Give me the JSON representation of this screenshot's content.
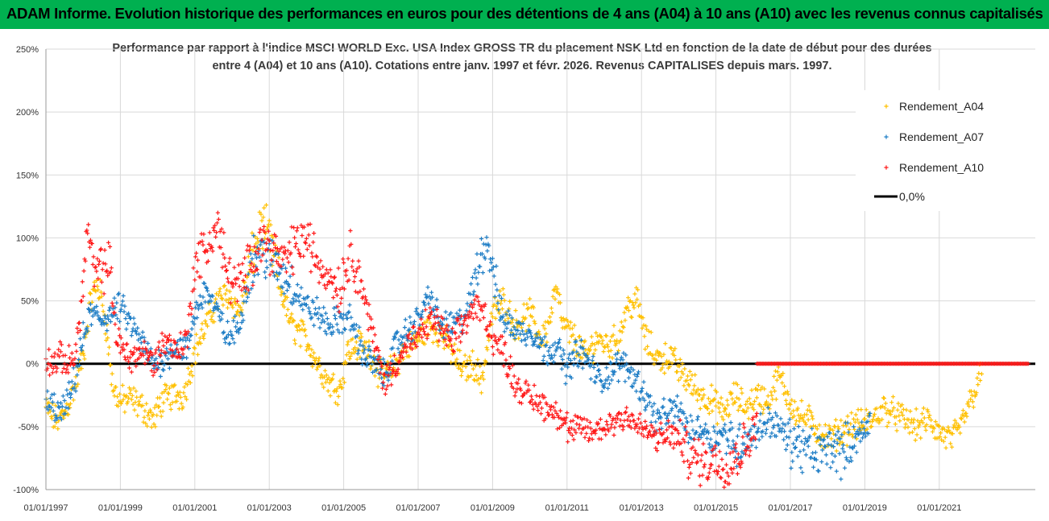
{
  "header": {
    "title": "ADAM Informe. Evolution historique des performances en euros pour des détentions de 4 ans (A04) à 10 ans (A10) avec les revenus connus capitalisés"
  },
  "colors": {
    "banner": "#00b050",
    "a04": "#ffc000",
    "a07": "#1f7ec6",
    "a10": "#ff1a1a",
    "zero": "#000000",
    "grid": "#d9d9d9"
  },
  "chart_data": {
    "type": "scatter",
    "title_lines": [
      "Performance par rapport à l'indice MSCI WORLD Exc. USA Index GROSS TR  du placement NSK Ltd en fonction de la date de début pour des durées",
      "entre 4 (A04) et 10 ans (A10). Cotations entre janv. 1997 et févr. 2026. Revenus CAPITALISES depuis mars. 1997."
    ],
    "xlabel": "",
    "ylabel": "",
    "x_range": [
      1997.0,
      2023.4
    ],
    "ylim": [
      -100,
      250
    ],
    "y_ticks": [
      250,
      200,
      150,
      100,
      50,
      0,
      -50,
      -100
    ],
    "y_tick_labels": [
      "250%",
      "200%",
      "150%",
      "100%",
      "50%",
      "0%",
      "-50%",
      "-100%"
    ],
    "x_ticks": [
      1997,
      1999,
      2001,
      2003,
      2005,
      2007,
      2009,
      2011,
      2013,
      2015,
      2017,
      2019,
      2021
    ],
    "x_tick_labels": [
      "01/01/1997",
      "01/01/1999",
      "01/01/2001",
      "01/01/2003",
      "01/01/2005",
      "01/01/2007",
      "01/01/2009",
      "01/01/2011",
      "01/01/2013",
      "01/01/2015",
      "01/01/2017",
      "01/01/2019",
      "01/01/2021"
    ],
    "legend_position": "top-right",
    "series": [
      {
        "name": "Rendement_A04",
        "key": "a04",
        "end": 2022.15,
        "points": [
          [
            1997.0,
            -35
          ],
          [
            1997.25,
            -45
          ],
          [
            1997.5,
            -40
          ],
          [
            1997.75,
            -20
          ],
          [
            1998.0,
            5
          ],
          [
            1998.2,
            50
          ],
          [
            1998.4,
            65
          ],
          [
            1998.6,
            35
          ],
          [
            1998.8,
            -20
          ],
          [
            1999.0,
            -30
          ],
          [
            1999.3,
            -28
          ],
          [
            1999.6,
            -35
          ],
          [
            1999.9,
            -45
          ],
          [
            2000.1,
            -30
          ],
          [
            2000.4,
            -25
          ],
          [
            2000.7,
            -25
          ],
          [
            2001.0,
            10
          ],
          [
            2001.3,
            30
          ],
          [
            2001.6,
            50
          ],
          [
            2001.9,
            55
          ],
          [
            2002.2,
            40
          ],
          [
            2002.5,
            80
          ],
          [
            2002.8,
            110
          ],
          [
            2003.0,
            100
          ],
          [
            2003.3,
            60
          ],
          [
            2003.6,
            30
          ],
          [
            2004.0,
            20
          ],
          [
            2004.3,
            0
          ],
          [
            2004.6,
            -15
          ],
          [
            2004.9,
            -20
          ],
          [
            2005.1,
            10
          ],
          [
            2005.4,
            15
          ],
          [
            2005.7,
            10
          ],
          [
            2006.0,
            -10
          ],
          [
            2006.3,
            -5
          ],
          [
            2006.6,
            10
          ],
          [
            2007.0,
            20
          ],
          [
            2007.3,
            30
          ],
          [
            2007.6,
            25
          ],
          [
            2007.9,
            10
          ],
          [
            2008.2,
            -5
          ],
          [
            2008.5,
            0
          ],
          [
            2008.7,
            -15
          ],
          [
            2009.0,
            40
          ],
          [
            2009.3,
            50
          ],
          [
            2009.6,
            30
          ],
          [
            2010.0,
            40
          ],
          [
            2010.3,
            20
          ],
          [
            2010.5,
            30
          ],
          [
            2010.7,
            60
          ],
          [
            2010.9,
            30
          ],
          [
            2011.2,
            20
          ],
          [
            2011.5,
            5
          ],
          [
            2011.8,
            20
          ],
          [
            2012.1,
            15
          ],
          [
            2012.4,
            20
          ],
          [
            2012.6,
            45
          ],
          [
            2012.9,
            50
          ],
          [
            2013.1,
            20
          ],
          [
            2013.4,
            5
          ],
          [
            2013.8,
            5
          ],
          [
            2014.0,
            -5
          ],
          [
            2014.3,
            -15
          ],
          [
            2014.6,
            -25
          ],
          [
            2014.9,
            -30
          ],
          [
            2015.2,
            -40
          ],
          [
            2015.5,
            -25
          ],
          [
            2015.8,
            -35
          ],
          [
            2016.1,
            -25
          ],
          [
            2016.4,
            -30
          ],
          [
            2016.7,
            -10
          ],
          [
            2016.9,
            -25
          ],
          [
            2017.2,
            -40
          ],
          [
            2017.5,
            -45
          ],
          [
            2017.8,
            -55
          ],
          [
            2018.0,
            -60
          ],
          [
            2018.3,
            -55
          ],
          [
            2018.6,
            -50
          ],
          [
            2018.9,
            -48
          ],
          [
            2019.2,
            -45
          ],
          [
            2019.5,
            -35
          ],
          [
            2019.8,
            -40
          ],
          [
            2020.1,
            -45
          ],
          [
            2020.4,
            -50
          ],
          [
            2020.7,
            -45
          ],
          [
            2021.0,
            -55
          ],
          [
            2021.3,
            -60
          ],
          [
            2021.5,
            -55
          ],
          [
            2021.7,
            -40
          ],
          [
            2021.9,
            -25
          ],
          [
            2022.1,
            -10
          ]
        ]
      },
      {
        "name": "Rendement_A07",
        "key": "a07",
        "end": 2019.15,
        "points": [
          [
            1997.0,
            -30
          ],
          [
            1997.2,
            -35
          ],
          [
            1997.4,
            -40
          ],
          [
            1997.6,
            -30
          ],
          [
            1997.8,
            -10
          ],
          [
            1998.0,
            20
          ],
          [
            1998.2,
            40
          ],
          [
            1998.5,
            35
          ],
          [
            1998.8,
            40
          ],
          [
            1999.0,
            45
          ],
          [
            1999.3,
            30
          ],
          [
            1999.6,
            15
          ],
          [
            1999.9,
            0
          ],
          [
            2000.2,
            5
          ],
          [
            2000.5,
            15
          ],
          [
            2000.8,
            10
          ],
          [
            2001.0,
            40
          ],
          [
            2001.3,
            60
          ],
          [
            2001.6,
            40
          ],
          [
            2001.9,
            20
          ],
          [
            2002.2,
            30
          ],
          [
            2002.5,
            80
          ],
          [
            2002.8,
            90
          ],
          [
            2003.1,
            80
          ],
          [
            2003.4,
            70
          ],
          [
            2003.7,
            60
          ],
          [
            2004.0,
            45
          ],
          [
            2004.3,
            40
          ],
          [
            2004.6,
            30
          ],
          [
            2004.9,
            35
          ],
          [
            2005.2,
            35
          ],
          [
            2005.5,
            10
          ],
          [
            2005.8,
            0
          ],
          [
            2006.1,
            -10
          ],
          [
            2006.4,
            15
          ],
          [
            2006.7,
            25
          ],
          [
            2007.0,
            35
          ],
          [
            2007.3,
            55
          ],
          [
            2007.6,
            30
          ],
          [
            2007.9,
            30
          ],
          [
            2008.2,
            35
          ],
          [
            2008.4,
            50
          ],
          [
            2008.6,
            75
          ],
          [
            2008.8,
            100
          ],
          [
            2009.0,
            80
          ],
          [
            2009.2,
            40
          ],
          [
            2009.5,
            30
          ],
          [
            2009.8,
            25
          ],
          [
            2010.1,
            25
          ],
          [
            2010.4,
            10
          ],
          [
            2010.7,
            15
          ],
          [
            2011.0,
            -5
          ],
          [
            2011.3,
            10
          ],
          [
            2011.6,
            0
          ],
          [
            2011.9,
            -15
          ],
          [
            2012.2,
            -5
          ],
          [
            2012.5,
            0
          ],
          [
            2012.8,
            -10
          ],
          [
            2013.1,
            -25
          ],
          [
            2013.4,
            -45
          ],
          [
            2013.7,
            -40
          ],
          [
            2014.0,
            -35
          ],
          [
            2014.3,
            -55
          ],
          [
            2014.6,
            -50
          ],
          [
            2014.9,
            -60
          ],
          [
            2015.2,
            -55
          ],
          [
            2015.5,
            -65
          ],
          [
            2015.8,
            -60
          ],
          [
            2016.1,
            -55
          ],
          [
            2016.4,
            -45
          ],
          [
            2016.7,
            -50
          ],
          [
            2016.9,
            -60
          ],
          [
            2017.2,
            -65
          ],
          [
            2017.5,
            -70
          ],
          [
            2017.8,
            -72
          ],
          [
            2018.1,
            -65
          ],
          [
            2018.4,
            -70
          ],
          [
            2018.7,
            -60
          ],
          [
            2019.0,
            -55
          ],
          [
            2019.15,
            -45
          ]
        ]
      },
      {
        "name": "Rendement_A10",
        "key": "a10",
        "end": 2016.1,
        "points": [
          [
            1997.0,
            5
          ],
          [
            1997.2,
            0
          ],
          [
            1997.4,
            5
          ],
          [
            1997.6,
            0
          ],
          [
            1997.8,
            10
          ],
          [
            1998.0,
            60
          ],
          [
            1998.1,
            110
          ],
          [
            1998.3,
            70
          ],
          [
            1998.5,
            75
          ],
          [
            1998.7,
            80
          ],
          [
            1998.9,
            20
          ],
          [
            1999.1,
            10
          ],
          [
            1999.3,
            5
          ],
          [
            1999.6,
            10
          ],
          [
            1999.9,
            0
          ],
          [
            2000.2,
            20
          ],
          [
            2000.5,
            10
          ],
          [
            2000.8,
            20
          ],
          [
            2001.0,
            80
          ],
          [
            2001.3,
            90
          ],
          [
            2001.6,
            110
          ],
          [
            2001.9,
            70
          ],
          [
            2002.2,
            60
          ],
          [
            2002.5,
            80
          ],
          [
            2002.8,
            100
          ],
          [
            2003.1,
            90
          ],
          [
            2003.4,
            80
          ],
          [
            2003.7,
            95
          ],
          [
            2004.0,
            100
          ],
          [
            2004.3,
            80
          ],
          [
            2004.6,
            70
          ],
          [
            2004.9,
            60
          ],
          [
            2005.2,
            90
          ],
          [
            2005.5,
            60
          ],
          [
            2005.8,
            20
          ],
          [
            2006.1,
            -15
          ],
          [
            2006.4,
            0
          ],
          [
            2006.7,
            15
          ],
          [
            2007.0,
            20
          ],
          [
            2007.3,
            35
          ],
          [
            2007.6,
            30
          ],
          [
            2007.9,
            15
          ],
          [
            2008.2,
            30
          ],
          [
            2008.5,
            45
          ],
          [
            2008.8,
            40
          ],
          [
            2009.0,
            20
          ],
          [
            2009.3,
            10
          ],
          [
            2009.6,
            -15
          ],
          [
            2009.9,
            -25
          ],
          [
            2010.2,
            -30
          ],
          [
            2010.5,
            -35
          ],
          [
            2010.8,
            -40
          ],
          [
            2011.1,
            -55
          ],
          [
            2011.4,
            -50
          ],
          [
            2011.7,
            -55
          ],
          [
            2012.0,
            -50
          ],
          [
            2012.3,
            -45
          ],
          [
            2012.6,
            -40
          ],
          [
            2012.9,
            -50
          ],
          [
            2013.2,
            -55
          ],
          [
            2013.5,
            -60
          ],
          [
            2013.8,
            -55
          ],
          [
            2014.1,
            -65
          ],
          [
            2014.4,
            -75
          ],
          [
            2014.7,
            -78
          ],
          [
            2015.0,
            -76
          ],
          [
            2015.3,
            -80
          ],
          [
            2015.6,
            -72
          ],
          [
            2015.9,
            -60
          ],
          [
            2016.0,
            -50
          ]
        ]
      },
      {
        "name": "0,0%",
        "key": "zero"
      }
    ]
  }
}
